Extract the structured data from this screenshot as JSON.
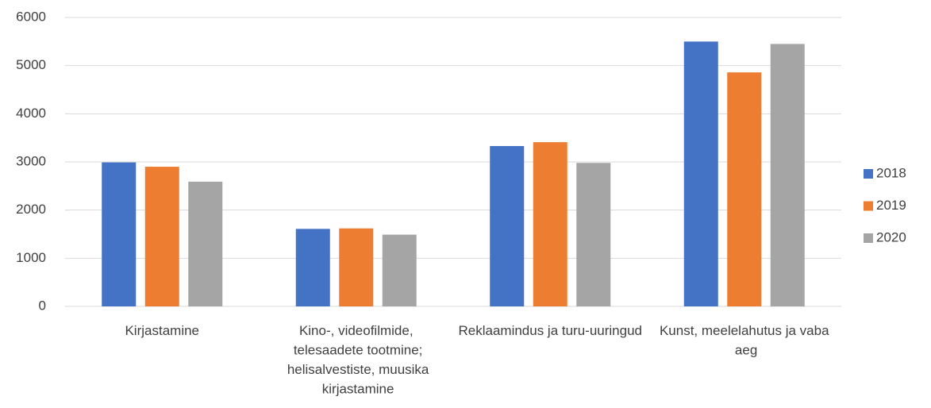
{
  "chart_data": {
    "type": "bar",
    "categories": [
      "Kirjastamine",
      "Kino-, videofilmide, telesaadete tootmine; helisalvestiste, muusika kirjastamine",
      "Reklaamindus ja turu-uuringud",
      "Kunst, meelelahutus ja vaba aeg"
    ],
    "series": [
      {
        "name": "2018",
        "color": "#4472c4",
        "values": [
          2990,
          1610,
          3330,
          5500
        ]
      },
      {
        "name": "2019",
        "color": "#ed7d31",
        "values": [
          2900,
          1620,
          3410,
          4860
        ]
      },
      {
        "name": "2020",
        "color": "#a5a5a5",
        "values": [
          2590,
          1490,
          2980,
          5450
        ]
      }
    ],
    "ylim": [
      0,
      6000
    ],
    "yticks": [
      0,
      1000,
      2000,
      3000,
      4000,
      5000,
      6000
    ],
    "grid": true,
    "legend": "right"
  }
}
